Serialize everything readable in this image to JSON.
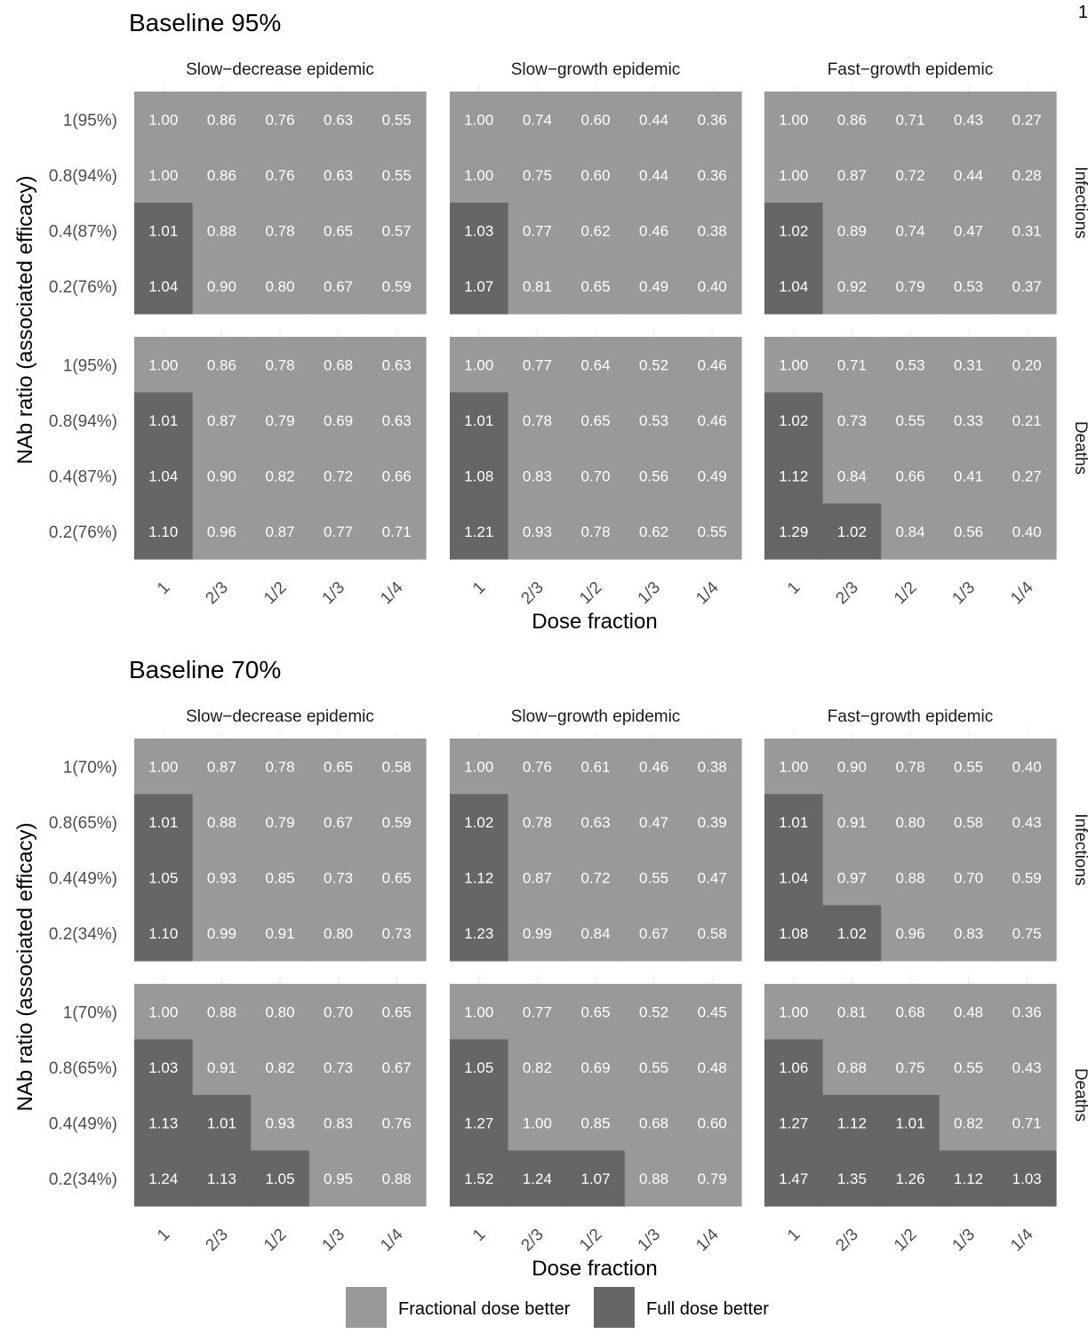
{
  "page_number": "1",
  "colors": {
    "fractional": "#999999",
    "full": "#666666"
  },
  "legend": {
    "fractional_label": "Fractional dose better",
    "full_label": "Full dose better"
  },
  "chart_data": [
    {
      "type": "heatmap",
      "title": "Baseline 95%",
      "xlabel": "Dose fraction",
      "ylabel": "NAb ratio (associated efficacy)",
      "x_categories": [
        "1",
        "2/3",
        "1/2",
        "1/3",
        "1/4"
      ],
      "y_categories": [
        "1(95%)",
        "0.8(94%)",
        "0.4(87%)",
        "0.2(76%)"
      ],
      "columns": [
        "Slow−decrease epidemic",
        "Slow−growth epidemic",
        "Fast−growth epidemic"
      ],
      "rows": [
        "Infections",
        "Deaths"
      ],
      "values": [
        [
          [
            [
              "1.00",
              "0.86",
              "0.76",
              "0.63",
              "0.55"
            ],
            [
              "1.00",
              "0.86",
              "0.76",
              "0.63",
              "0.55"
            ],
            [
              "1.01",
              "0.88",
              "0.78",
              "0.65",
              "0.57"
            ],
            [
              "1.04",
              "0.90",
              "0.80",
              "0.67",
              "0.59"
            ]
          ],
          [
            [
              "1.00",
              "0.74",
              "0.60",
              "0.44",
              "0.36"
            ],
            [
              "1.00",
              "0.75",
              "0.60",
              "0.44",
              "0.36"
            ],
            [
              "1.03",
              "0.77",
              "0.62",
              "0.46",
              "0.38"
            ],
            [
              "1.07",
              "0.81",
              "0.65",
              "0.49",
              "0.40"
            ]
          ],
          [
            [
              "1.00",
              "0.86",
              "0.71",
              "0.43",
              "0.27"
            ],
            [
              "1.00",
              "0.87",
              "0.72",
              "0.44",
              "0.28"
            ],
            [
              "1.02",
              "0.89",
              "0.74",
              "0.47",
              "0.31"
            ],
            [
              "1.04",
              "0.92",
              "0.79",
              "0.53",
              "0.37"
            ]
          ]
        ],
        [
          [
            [
              "1.00",
              "0.86",
              "0.78",
              "0.68",
              "0.63"
            ],
            [
              "1.01",
              "0.87",
              "0.79",
              "0.69",
              "0.63"
            ],
            [
              "1.04",
              "0.90",
              "0.82",
              "0.72",
              "0.66"
            ],
            [
              "1.10",
              "0.96",
              "0.87",
              "0.77",
              "0.71"
            ]
          ],
          [
            [
              "1.00",
              "0.77",
              "0.64",
              "0.52",
              "0.46"
            ],
            [
              "1.01",
              "0.78",
              "0.65",
              "0.53",
              "0.46"
            ],
            [
              "1.08",
              "0.83",
              "0.70",
              "0.56",
              "0.49"
            ],
            [
              "1.21",
              "0.93",
              "0.78",
              "0.62",
              "0.55"
            ]
          ],
          [
            [
              "1.00",
              "0.71",
              "0.53",
              "0.31",
              "0.20"
            ],
            [
              "1.02",
              "0.73",
              "0.55",
              "0.33",
              "0.21"
            ],
            [
              "1.12",
              "0.84",
              "0.66",
              "0.41",
              "0.27"
            ],
            [
              "1.29",
              "1.02",
              "0.84",
              "0.56",
              "0.40"
            ]
          ]
        ]
      ]
    },
    {
      "type": "heatmap",
      "title": "Baseline 70%",
      "xlabel": "Dose fraction",
      "ylabel": "NAb ratio (associated efficacy)",
      "x_categories": [
        "1",
        "2/3",
        "1/2",
        "1/3",
        "1/4"
      ],
      "y_categories": [
        "1(70%)",
        "0.8(65%)",
        "0.4(49%)",
        "0.2(34%)"
      ],
      "columns": [
        "Slow−decrease epidemic",
        "Slow−growth epidemic",
        "Fast−growth epidemic"
      ],
      "rows": [
        "Infections",
        "Deaths"
      ],
      "values": [
        [
          [
            [
              "1.00",
              "0.87",
              "0.78",
              "0.65",
              "0.58"
            ],
            [
              "1.01",
              "0.88",
              "0.79",
              "0.67",
              "0.59"
            ],
            [
              "1.05",
              "0.93",
              "0.85",
              "0.73",
              "0.65"
            ],
            [
              "1.10",
              "0.99",
              "0.91",
              "0.80",
              "0.73"
            ]
          ],
          [
            [
              "1.00",
              "0.76",
              "0.61",
              "0.46",
              "0.38"
            ],
            [
              "1.02",
              "0.78",
              "0.63",
              "0.47",
              "0.39"
            ],
            [
              "1.12",
              "0.87",
              "0.72",
              "0.55",
              "0.47"
            ],
            [
              "1.23",
              "0.99",
              "0.84",
              "0.67",
              "0.58"
            ]
          ],
          [
            [
              "1.00",
              "0.90",
              "0.78",
              "0.55",
              "0.40"
            ],
            [
              "1.01",
              "0.91",
              "0.80",
              "0.58",
              "0.43"
            ],
            [
              "1.04",
              "0.97",
              "0.88",
              "0.70",
              "0.59"
            ],
            [
              "1.08",
              "1.02",
              "0.96",
              "0.83",
              "0.75"
            ]
          ]
        ],
        [
          [
            [
              "1.00",
              "0.88",
              "0.80",
              "0.70",
              "0.65"
            ],
            [
              "1.03",
              "0.91",
              "0.82",
              "0.73",
              "0.67"
            ],
            [
              "1.13",
              "1.01",
              "0.93",
              "0.83",
              "0.76"
            ],
            [
              "1.24",
              "1.13",
              "1.05",
              "0.95",
              "0.88"
            ]
          ],
          [
            [
              "1.00",
              "0.77",
              "0.65",
              "0.52",
              "0.45"
            ],
            [
              "1.05",
              "0.82",
              "0.69",
              "0.55",
              "0.48"
            ],
            [
              "1.27",
              "1.00",
              "0.85",
              "0.68",
              "0.60"
            ],
            [
              "1.52",
              "1.24",
              "1.07",
              "0.88",
              "0.79"
            ]
          ],
          [
            [
              "1.00",
              "0.81",
              "0.68",
              "0.48",
              "0.36"
            ],
            [
              "1.06",
              "0.88",
              "0.75",
              "0.55",
              "0.43"
            ],
            [
              "1.27",
              "1.12",
              "1.01",
              "0.82",
              "0.71"
            ],
            [
              "1.47",
              "1.35",
              "1.26",
              "1.12",
              "1.03"
            ]
          ]
        ]
      ]
    }
  ]
}
